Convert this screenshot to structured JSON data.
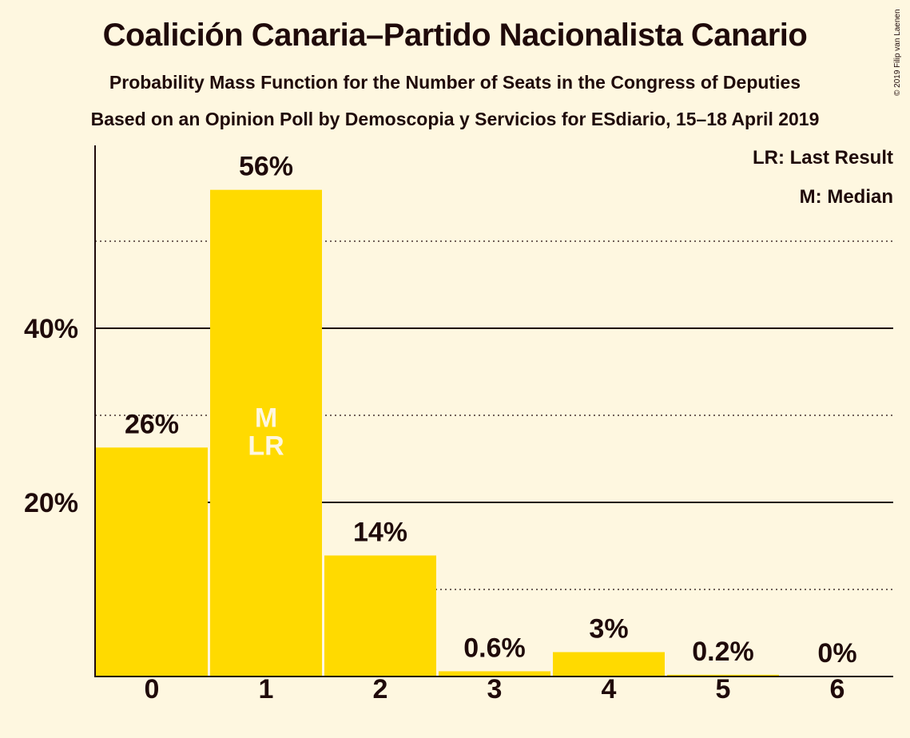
{
  "header": {
    "title": "Coalición Canaria–Partido Nacionalista Canario",
    "subtitle": "Probability Mass Function for the Number of Seats in the Congress of Deputies",
    "source": "Based on an Opinion Poll by Demoscopia y Servicios for ESdiario, 15–18 April 2019",
    "copyright": "© 2019 Filip van Laenen"
  },
  "legend": {
    "last_result": "LR: Last Result",
    "median": "M: Median"
  },
  "colors": {
    "bar": "#FFDA00",
    "background": "#FEF7E0",
    "text": "#1F0A0A",
    "marker_text": "#FEF7E0"
  },
  "chart_data": {
    "type": "bar",
    "categories": [
      "0",
      "1",
      "2",
      "3",
      "4",
      "5",
      "6"
    ],
    "values": [
      26.3,
      55.9,
      13.9,
      0.6,
      2.8,
      0.2,
      0
    ],
    "value_labels": [
      "26%",
      "56%",
      "14%",
      "0.6%",
      "3%",
      "0.2%",
      "0%"
    ],
    "ylim": [
      0,
      60
    ],
    "y_ticks": [
      {
        "value": 20,
        "label": "20%"
      },
      {
        "value": 40,
        "label": "40%"
      }
    ],
    "minor_gridlines": [
      10,
      30,
      50
    ],
    "markers": [
      {
        "category": "1",
        "labels": [
          "M",
          "LR"
        ]
      }
    ],
    "grid": true,
    "legend_position": "top-right",
    "xlabel": "",
    "ylabel": ""
  }
}
